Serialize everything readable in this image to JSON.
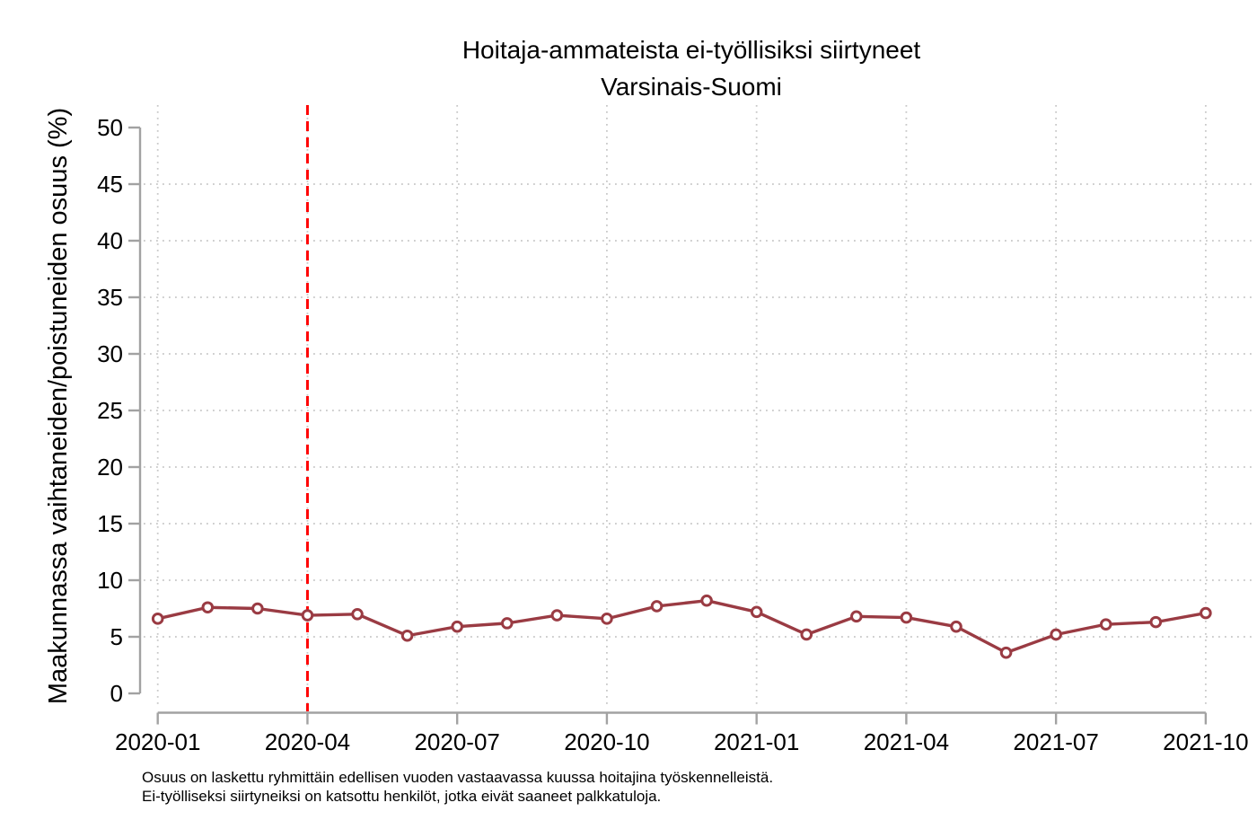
{
  "chart": {
    "title": "Hoitaja-ammateista ei-työllisiksi siirtyneet",
    "subtitle": "Varsinais-Suomi",
    "ylabel": "Maakunnassa vaihtaneiden/poistuneiden osuus (%)",
    "footnotes": {
      "line1": "Osuus on laskettu ryhmittäin edellisen vuoden vastaavassa kuussa hoitajina työskennelleistä.",
      "line2": "Ei-työlliseksi siirtyneiksi on katsottu henkilöt, jotka eivät saaneet palkkatuloja."
    },
    "colors": {
      "series": "#9a3b43",
      "marker_fill": "#ffffff",
      "reference_line": "#ff0000",
      "axis": "#a2a2a2",
      "grid": "#c8c8c8",
      "text": "#000000",
      "background": "#ffffff"
    }
  },
  "chart_data": {
    "type": "line",
    "title": "Hoitaja-ammateista ei-työllisiksi siirtyneet",
    "subtitle": "Varsinais-Suomi",
    "xlabel": "",
    "ylabel": "Maakunnassa vaihtaneiden/poistuneiden osuus (%)",
    "x": [
      "2020-01",
      "2020-02",
      "2020-03",
      "2020-04",
      "2020-05",
      "2020-06",
      "2020-07",
      "2020-08",
      "2020-09",
      "2020-10",
      "2020-11",
      "2020-12",
      "2021-01",
      "2021-02",
      "2021-03",
      "2021-04",
      "2021-05",
      "2021-06",
      "2021-07",
      "2021-08",
      "2021-09",
      "2021-10"
    ],
    "series": [
      {
        "name": "Varsinais-Suomi",
        "values": [
          6.6,
          7.6,
          7.5,
          6.9,
          7.0,
          5.1,
          5.9,
          6.2,
          6.9,
          6.6,
          7.7,
          8.2,
          7.2,
          5.2,
          6.8,
          6.7,
          5.9,
          3.6,
          5.2,
          6.1,
          6.3,
          7.1
        ]
      }
    ],
    "xtick_labels": [
      "2020-01",
      "2020-04",
      "2020-07",
      "2020-10",
      "2021-01",
      "2021-04",
      "2021-07",
      "2021-10"
    ],
    "yticks": [
      0,
      5,
      10,
      15,
      20,
      25,
      30,
      35,
      40,
      45,
      50
    ],
    "ylim": [
      0,
      50
    ],
    "reference_line_x": "2020-04",
    "reference_line_style": "dashed",
    "grid": "dotted horizontal and vertical at labeled ticks",
    "legend": "none",
    "marker": "hollow-circle"
  }
}
